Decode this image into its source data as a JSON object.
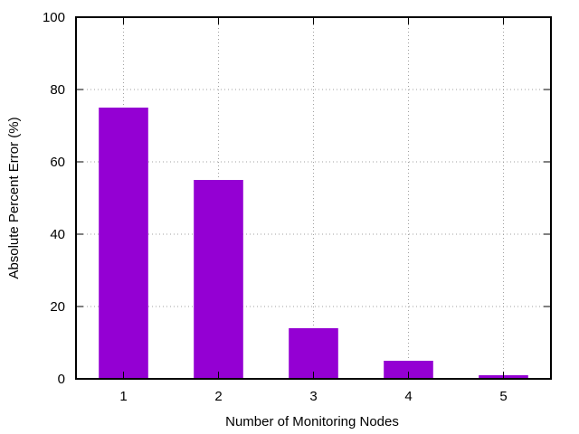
{
  "chart_data": {
    "type": "bar",
    "title": "",
    "xlabel": "Number of Monitoring Nodes",
    "ylabel": "Absolute Percent Error (%)",
    "categories": [
      "1",
      "2",
      "3",
      "4",
      "5"
    ],
    "values": [
      75,
      55,
      14,
      5,
      1
    ],
    "ylim": [
      0,
      100
    ],
    "yticks": [
      0,
      20,
      40,
      60,
      80,
      100
    ],
    "grid": true,
    "bar_color": "#9400d3"
  }
}
